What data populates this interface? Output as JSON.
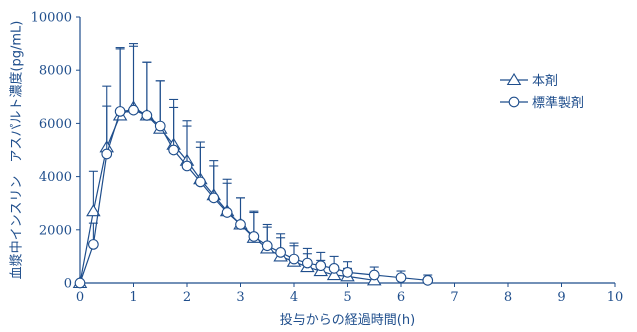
{
  "chart_data": {
    "type": "line",
    "xlabel": "投与からの経過時間(h)",
    "ylabel": "血漿中インスリン　アスパルト濃度(pg/mL)",
    "xlim": [
      0,
      10
    ],
    "ylim": [
      0,
      10000
    ],
    "x_ticks": [
      0,
      1,
      2,
      3,
      4,
      5,
      6,
      7,
      8,
      9,
      10
    ],
    "y_ticks": [
      0,
      2000,
      4000,
      6000,
      8000,
      10000
    ],
    "grid": false,
    "legend_position": "top-right",
    "series": [
      {
        "name": "本剤",
        "marker": "triangle",
        "x": [
          0,
          0.25,
          0.5,
          0.75,
          1,
          1.25,
          1.5,
          1.75,
          2,
          2.25,
          2.5,
          2.75,
          3,
          3.25,
          3.5,
          3.75,
          4,
          4.25,
          4.5,
          4.75,
          5,
          5.5
        ],
        "y": [
          0,
          2700,
          5100,
          6300,
          6600,
          6300,
          5800,
          5200,
          4600,
          3900,
          3300,
          2700,
          2200,
          1700,
          1300,
          1000,
          800,
          600,
          450,
          300,
          250,
          100
        ],
        "err": [
          0,
          1500,
          2300,
          2500,
          2300,
          2000,
          1800,
          1700,
          1500,
          1400,
          1300,
          1200,
          1000,
          1000,
          800,
          700,
          600,
          500,
          400,
          350,
          300,
          250
        ]
      },
      {
        "name": "標準製剤",
        "marker": "circle",
        "x": [
          0,
          0.25,
          0.5,
          0.75,
          1,
          1.25,
          1.5,
          1.75,
          2,
          2.25,
          2.5,
          2.75,
          3,
          3.25,
          3.5,
          3.75,
          4,
          4.25,
          4.5,
          4.75,
          5,
          5.5,
          6,
          6.5
        ],
        "y": [
          0,
          1450,
          4850,
          6450,
          6500,
          6300,
          5900,
          5000,
          4400,
          3800,
          3200,
          2650,
          2200,
          1750,
          1400,
          1150,
          900,
          750,
          650,
          550,
          400,
          300,
          200,
          100
        ],
        "err": [
          0,
          800,
          1800,
          2400,
          2500,
          2000,
          1700,
          1600,
          1500,
          1300,
          1200,
          1100,
          1000,
          900,
          800,
          700,
          600,
          550,
          500,
          450,
          400,
          300,
          250,
          200
        ]
      }
    ]
  }
}
